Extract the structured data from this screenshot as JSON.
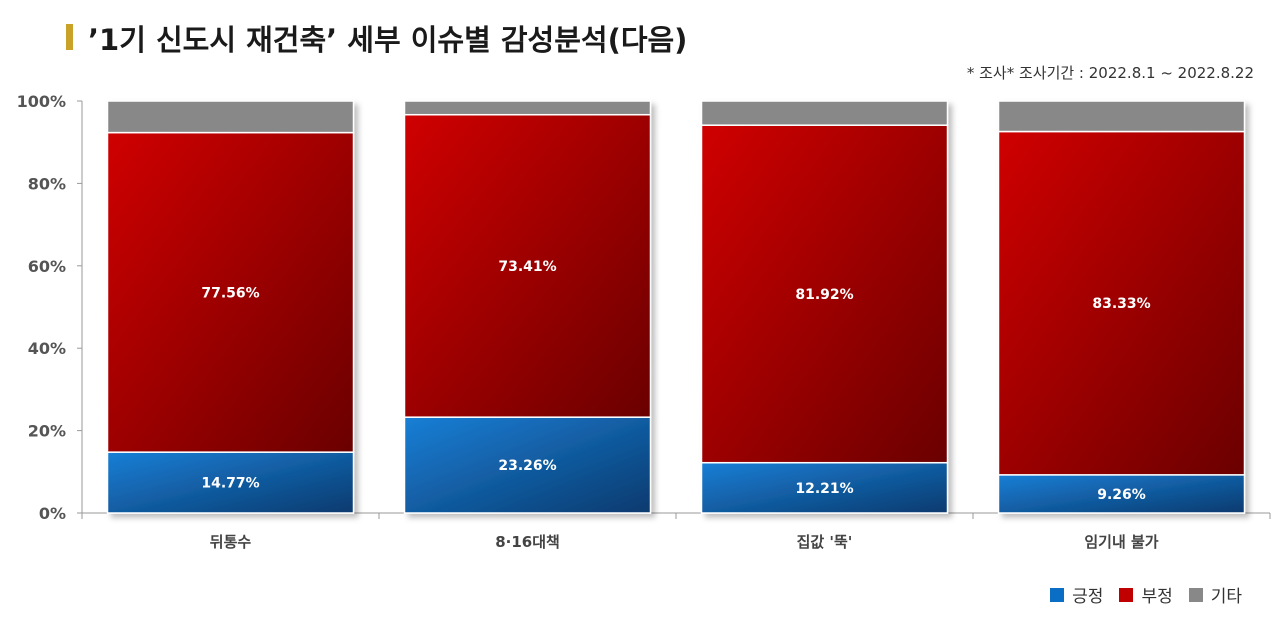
{
  "header": {
    "title": "’1기 신도시 재건축’ 세부 이슈별 감성분석(다음)",
    "note": "* 조사* 조사기간 : 2022.8.1 ~ 2022.8.22"
  },
  "colors": {
    "positive": "#0a6fc4",
    "negative": "#c00000",
    "other": "#888888",
    "title_accent": "#c9a227"
  },
  "chart_data": {
    "type": "bar",
    "stacked": true,
    "percent": true,
    "categories": [
      "뒤통수",
      "8·16대책",
      "집값 '뚝'",
      "임기내 불가"
    ],
    "series": [
      {
        "name": "긍정",
        "values": [
          14.77,
          23.26,
          12.21,
          9.26
        ],
        "labels": [
          "14.77%",
          "23.26%",
          "12.21%",
          "9.26%"
        ]
      },
      {
        "name": "부정",
        "values": [
          77.56,
          73.41,
          81.92,
          83.33
        ],
        "labels": [
          "77.56%",
          "73.41%",
          "81.92%",
          "83.33%"
        ]
      },
      {
        "name": "기타",
        "values": [
          7.67,
          3.33,
          5.87,
          7.41
        ]
      }
    ],
    "ylim": [
      0,
      100
    ],
    "yticks": [
      "0%",
      "20%",
      "40%",
      "60%",
      "80%",
      "100%"
    ],
    "legend_position": "bottom-right",
    "grid": false
  }
}
